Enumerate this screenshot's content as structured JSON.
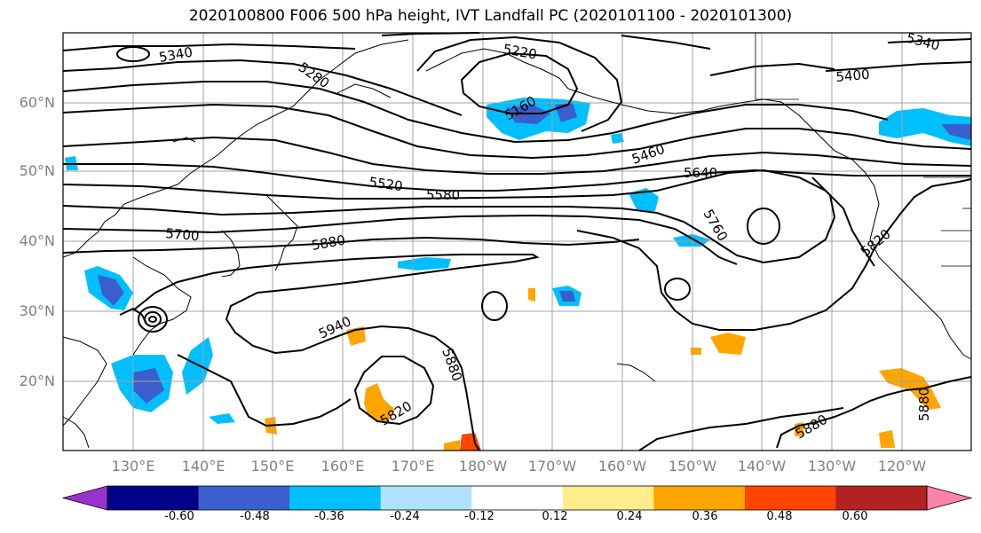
{
  "title": "2020100800 F006 500 hPa height, IVT Landfall PC (2020101100 - 2020101300)",
  "lat_labels": [
    "60°N",
    "50°N",
    "40°N",
    "30°N",
    "20°N"
  ],
  "lon_labels": [
    "130°E",
    "140°E",
    "150°E",
    "160°E",
    "170°E",
    "180°W",
    "170°W",
    "160°W",
    "150°W",
    "140°W",
    "130°W",
    "120°W"
  ],
  "contour_labels": [
    "5340",
    "5220",
    "5280",
    "5160",
    "5340",
    "5400",
    "5460",
    "5640",
    "5520",
    "5580",
    "5700",
    "5760",
    "5880",
    "5820",
    "5940",
    "5880",
    "5820",
    "5880",
    "5880"
  ],
  "colorbar": {
    "tick_labels": [
      "-0.60",
      "-0.48",
      "-0.36",
      "-0.24",
      "-0.12",
      "0.12",
      "0.24",
      "0.36",
      "0.48",
      "0.60"
    ],
    "colors": [
      "#9932cc",
      "#00008b",
      "#3a5fcd",
      "#00bfff",
      "#b0e2ff",
      "#ffffff",
      "#ffec8b",
      "#ffa500",
      "#ff4500",
      "#b22222",
      "#ff82ab"
    ]
  }
}
